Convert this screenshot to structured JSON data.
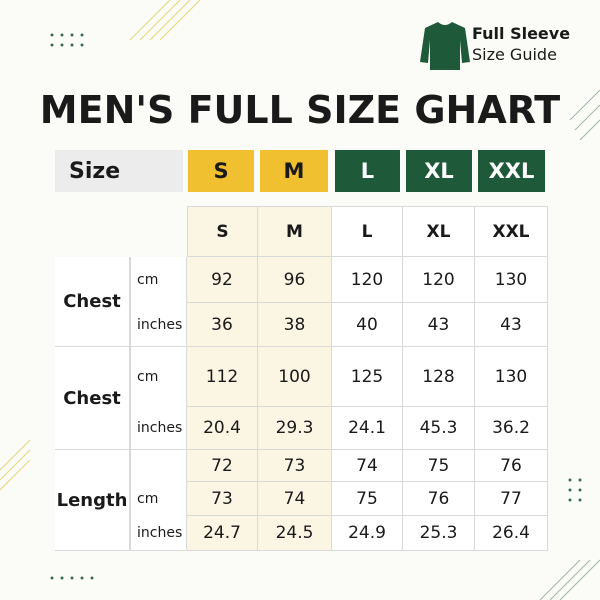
{
  "badge": {
    "line1": "Full Sleeve",
    "line2": "Size Guide"
  },
  "title": "MEN'S FULL SIZE GHART",
  "size_bar": {
    "label": "Size",
    "sizes": [
      "S",
      "M",
      "L",
      "XL",
      "XXL"
    ]
  },
  "table": {
    "columns": [
      "S",
      "M",
      "L",
      "XL",
      "XXL"
    ],
    "groups": [
      {
        "label": "Chest",
        "rows": [
          {
            "unit": "cm",
            "values": [
              92,
              96,
              120,
              120,
              130
            ]
          },
          {
            "unit": "inches",
            "values": [
              36,
              38,
              40,
              43,
              43
            ]
          }
        ]
      },
      {
        "label": "Chest",
        "rows": [
          {
            "unit": "cm",
            "values": [
              112,
              100,
              125,
              128,
              130
            ]
          },
          {
            "unit": "inches",
            "values": [
              20.4,
              29.3,
              24.1,
              45.3,
              36.2
            ]
          }
        ]
      },
      {
        "label": "Length",
        "rows": [
          {
            "unit": null,
            "values": [
              72,
              73,
              74,
              75,
              76
            ]
          },
          {
            "unit": "cm",
            "values": [
              73,
              74,
              75,
              76,
              77
            ]
          },
          {
            "unit": "inches",
            "values": [
              24.7,
              24.5,
              24.9,
              25.3,
              26.4
            ]
          }
        ]
      }
    ]
  }
}
